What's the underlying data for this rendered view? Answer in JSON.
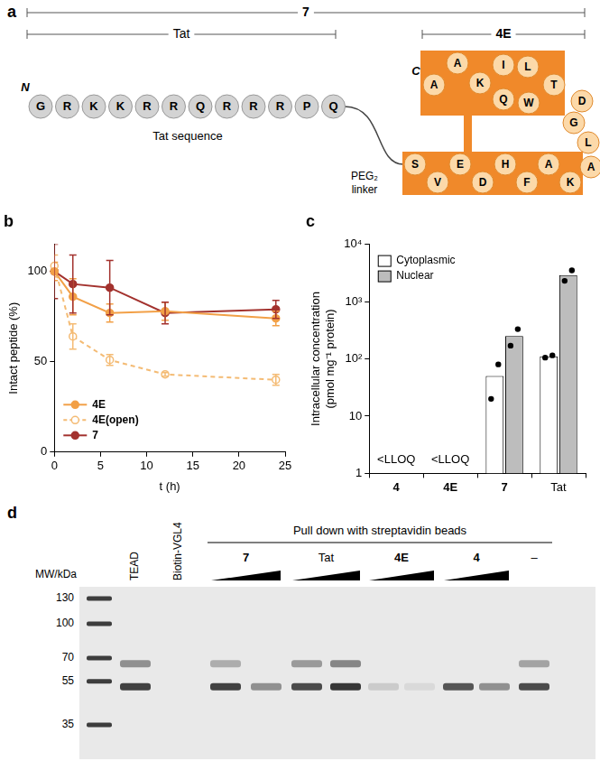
{
  "chart_data": [
    {
      "type": "line",
      "title": "b",
      "xlabel": "t (h)",
      "ylabel": "Intact peptide (%)",
      "x": [
        0,
        2,
        6,
        12,
        24
      ],
      "xlim": [
        0,
        25
      ],
      "xticks": [
        0,
        5,
        10,
        15,
        20,
        25
      ],
      "ylim": [
        0,
        115
      ],
      "yticks": [
        0,
        50,
        100
      ],
      "grid": false,
      "legend": "lower left",
      "series": [
        {
          "name": "4E",
          "color": "#F2A047",
          "marker": "circle",
          "line_style": "solid",
          "values": [
            100,
            86,
            77,
            78,
            74
          ],
          "errors": [
            5,
            10,
            5,
            5,
            4
          ]
        },
        {
          "name": "4E(open)",
          "color": "#F4BB74",
          "marker": "open circle",
          "line_style": "dashed",
          "values": [
            103,
            64,
            51,
            43,
            40
          ],
          "errors": [
            6,
            7,
            3,
            1,
            3
          ]
        },
        {
          "name": "7",
          "color": "#A3322E",
          "marker": "circle",
          "line_style": "solid",
          "values": [
            100,
            93,
            91,
            77,
            79
          ],
          "errors": [
            15,
            16,
            15,
            6,
            5
          ]
        }
      ]
    },
    {
      "type": "bar",
      "title": "c",
      "ylabel": [
        "Intracellular concentration",
        "(pmol mg⁻¹ protein)"
      ],
      "categories": [
        "4",
        "4E",
        "7",
        "Tat"
      ],
      "log": "y",
      "ylim": [
        1,
        10000
      ],
      "yticks": [
        1,
        10,
        {
          "value": 100,
          "label": "10²"
        },
        {
          "value": 1000,
          "label": "10³"
        },
        {
          "value": 10000,
          "label": "10⁴"
        }
      ],
      "grid": false,
      "legend": "upper left",
      "series": [
        {
          "name": "Cytoplasmic",
          "color": "#FFFFFF",
          "values": [
            null,
            null,
            50,
            110
          ],
          "points": [
            [],
            [],
            [
              20,
              80
            ],
            [
              105,
              115
            ]
          ]
        },
        {
          "name": "Nuclear",
          "color": "#BDBDBD",
          "values": [
            null,
            null,
            250,
            2900
          ],
          "points": [
            [],
            [],
            [
              170,
              330
            ],
            [
              2300,
              3500
            ]
          ]
        }
      ],
      "annotations": [
        {
          "category": "4",
          "text": "<LLOQ"
        },
        {
          "category": "4E",
          "text": "<LLOQ"
        }
      ]
    }
  ],
  "diagram": {
    "label": "a",
    "spans": [
      {
        "text": "7"
      },
      {
        "text": "Tat"
      },
      {
        "text": "4E"
      }
    ],
    "n_term": "N",
    "c_term": "C",
    "tat_residues": [
      "G",
      "R",
      "K",
      "K",
      "R",
      "R",
      "Q",
      "R",
      "R",
      "R",
      "P",
      "Q"
    ],
    "tat_caption": "Tat sequence",
    "linker": [
      "PEG₂",
      "linker"
    ],
    "stapled_residues": [
      "S",
      "V",
      "E",
      "D",
      "H",
      "F",
      "A",
      "K",
      "A",
      "L",
      "G",
      "D",
      "T",
      "W",
      "L",
      "Q",
      "I",
      "K",
      "A",
      "A"
    ]
  },
  "gel": {
    "label": "d",
    "mw_title": "MW/kDa",
    "markers": [
      130,
      100,
      70,
      55,
      35
    ],
    "header": "Pull down with streptavidin beads",
    "lanes": [
      {
        "label": "TEAD",
        "pulldown": false,
        "bands": [
          [
            {
              "kda": 66,
              "intensity": 0.45
            },
            {
              "kda": 52,
              "intensity": 0.85
            }
          ]
        ]
      },
      {
        "label": "Biotin-VGL4",
        "pulldown": false,
        "bands": [
          []
        ]
      },
      {
        "label": "7",
        "pulldown": true,
        "bands": [
          [
            {
              "kda": 66,
              "intensity": 0.3
            },
            {
              "kda": 52,
              "intensity": 0.85
            }
          ],
          [
            {
              "kda": 52,
              "intensity": 0.45
            }
          ]
        ]
      },
      {
        "label": "Tat",
        "pulldown": true,
        "bands": [
          [
            {
              "kda": 66,
              "intensity": 0.4
            },
            {
              "kda": 52,
              "intensity": 0.8
            }
          ],
          [
            {
              "kda": 66,
              "intensity": 0.5
            },
            {
              "kda": 52,
              "intensity": 0.9
            }
          ]
        ]
      },
      {
        "label": "4E",
        "pulldown": true,
        "bands": [
          [
            {
              "kda": 52,
              "intensity": 0.15
            }
          ],
          [
            {
              "kda": 52,
              "intensity": 0.08
            }
          ]
        ]
      },
      {
        "label": "4",
        "pulldown": true,
        "bands": [
          [
            {
              "kda": 52,
              "intensity": 0.75
            }
          ],
          [
            {
              "kda": 52,
              "intensity": 0.45
            }
          ]
        ]
      },
      {
        "label": "–",
        "pulldown": true,
        "bands": [
          [
            {
              "kda": 66,
              "intensity": 0.35
            },
            {
              "kda": 52,
              "intensity": 0.8
            }
          ]
        ]
      }
    ]
  }
}
